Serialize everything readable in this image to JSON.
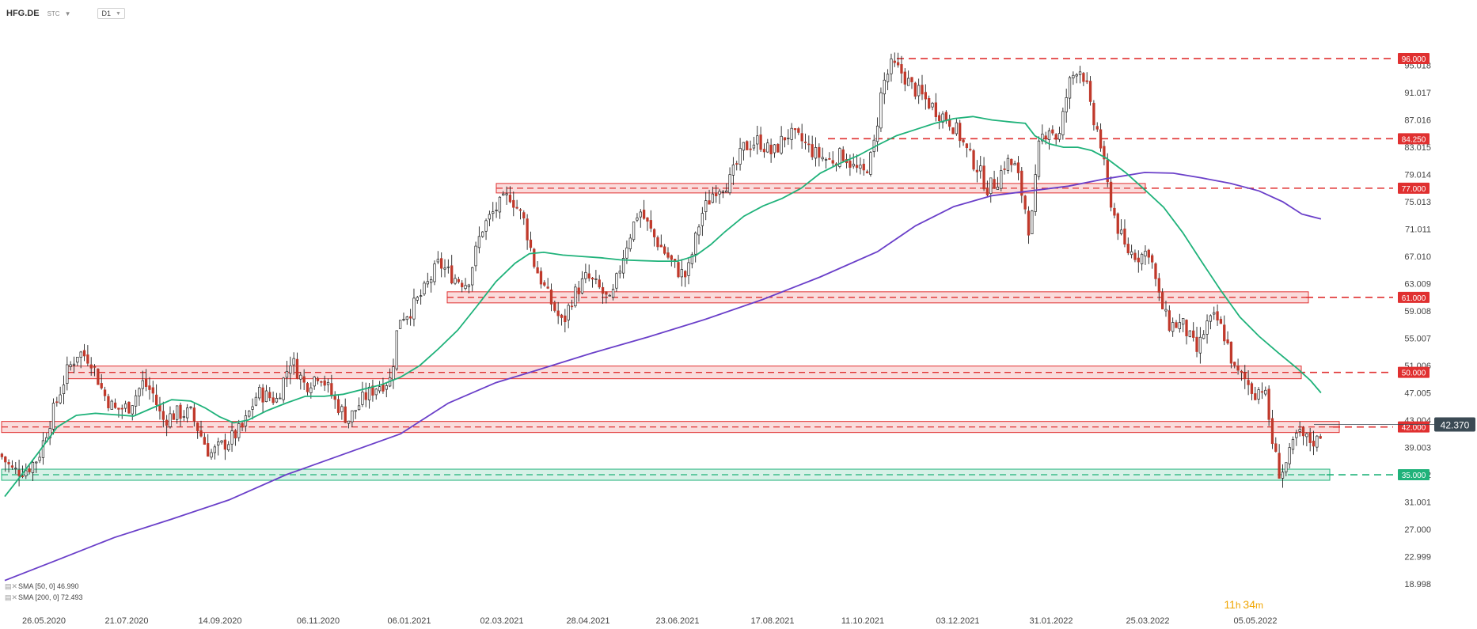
{
  "header": {
    "symbol": "HFG.DE",
    "source": "STC",
    "timeframe": "D1"
  },
  "indicators": [
    {
      "label": "SMA [50, 0] 46.990",
      "color": "#1fb27a"
    },
    {
      "label": "SMA [200, 0] 72.493",
      "color": "#6a3fc9"
    }
  ],
  "timer": {
    "hours": "11",
    "h_unit": "h",
    "minutes": "34",
    "m_unit": "m"
  },
  "chart_data": {
    "type": "candlestick",
    "ylim": [
      18.998,
      99.019
    ],
    "y_ticks": [
      "95.018",
      "91.017",
      "87.016",
      "83.015",
      "79.014",
      "75.013",
      "71.011",
      "67.010",
      "63.009",
      "59.008",
      "55.007",
      "51.006",
      "47.005",
      "43.004",
      "39.003",
      "35.002",
      "31.001",
      "27.000",
      "22.999",
      "18.998"
    ],
    "x_ticks": [
      "26.05.2020",
      "21.07.2020",
      "14.09.2020",
      "06.11.2020",
      "06.01.2021",
      "02.03.2021",
      "28.04.2021",
      "23.06.2021",
      "17.08.2021",
      "11.10.2021",
      "03.12.2021",
      "31.01.2022",
      "25.03.2022",
      "05.05.2022"
    ],
    "current_price": "42.370",
    "levels": [
      {
        "value": 96.0,
        "label": "96.000",
        "color": "#e03030",
        "zone": false
      },
      {
        "value": 84.25,
        "label": "84.250",
        "color": "#e03030",
        "zone": false
      },
      {
        "value": 77.0,
        "label": "77.000",
        "color": "#e03030",
        "zone": true
      },
      {
        "value": 61.0,
        "label": "61.000",
        "color": "#e03030",
        "zone": true
      },
      {
        "value": 50.0,
        "label": "50.000",
        "color": "#e03030",
        "zone": true
      },
      {
        "value": 42.0,
        "label": "42.000",
        "color": "#e03030",
        "zone": true
      },
      {
        "value": 35.0,
        "label": "35.000",
        "color": "#1fb27a",
        "zone": true
      }
    ],
    "close_path": [
      [
        0,
        38.0
      ],
      [
        14,
        35.5
      ],
      [
        28,
        35.8
      ],
      [
        40,
        37.5
      ],
      [
        55,
        44
      ],
      [
        70,
        50
      ],
      [
        82,
        53
      ],
      [
        95,
        52
      ],
      [
        108,
        47
      ],
      [
        120,
        44.5
      ],
      [
        135,
        45
      ],
      [
        150,
        48.5
      ],
      [
        160,
        47
      ],
      [
        170,
        43
      ],
      [
        185,
        44
      ],
      [
        200,
        44
      ],
      [
        210,
        41
      ],
      [
        220,
        38
      ],
      [
        240,
        40
      ],
      [
        255,
        42
      ],
      [
        270,
        47
      ],
      [
        290,
        46
      ],
      [
        305,
        52
      ],
      [
        320,
        48
      ],
      [
        335,
        50
      ],
      [
        350,
        46
      ],
      [
        365,
        43
      ],
      [
        380,
        46
      ],
      [
        395,
        48
      ],
      [
        410,
        49
      ],
      [
        418,
        58
      ],
      [
        430,
        59
      ],
      [
        445,
        62
      ],
      [
        460,
        66
      ],
      [
        475,
        64
      ],
      [
        490,
        63
      ],
      [
        505,
        71
      ],
      [
        520,
        74
      ],
      [
        535,
        76
      ],
      [
        550,
        72
      ],
      [
        560,
        66
      ],
      [
        575,
        61
      ],
      [
        590,
        57
      ],
      [
        600,
        61
      ],
      [
        615,
        64
      ],
      [
        630,
        62
      ],
      [
        640,
        60
      ],
      [
        655,
        68
      ],
      [
        670,
        74
      ],
      [
        685,
        70
      ],
      [
        700,
        67
      ],
      [
        710,
        65
      ],
      [
        720,
        64
      ],
      [
        735,
        73
      ],
      [
        750,
        77
      ],
      [
        765,
        78
      ],
      [
        780,
        83
      ],
      [
        795,
        84
      ],
      [
        810,
        82
      ],
      [
        825,
        85
      ],
      [
        840,
        84
      ],
      [
        855,
        82
      ],
      [
        870,
        81
      ],
      [
        885,
        82
      ],
      [
        895,
        80
      ],
      [
        905,
        79
      ],
      [
        915,
        82
      ],
      [
        925,
        92
      ],
      [
        935,
        95
      ],
      [
        945,
        94
      ],
      [
        955,
        92
      ],
      [
        970,
        90
      ],
      [
        985,
        88
      ],
      [
        995,
        87
      ],
      [
        1005,
        85
      ],
      [
        1015,
        82
      ],
      [
        1025,
        80
      ],
      [
        1035,
        77
      ],
      [
        1045,
        78
      ],
      [
        1055,
        81
      ],
      [
        1065,
        80
      ],
      [
        1075,
        74
      ],
      [
        1080,
        70
      ],
      [
        1090,
        84
      ],
      [
        1100,
        86
      ],
      [
        1110,
        84
      ],
      [
        1120,
        92
      ],
      [
        1130,
        95
      ],
      [
        1138,
        93
      ],
      [
        1145,
        87
      ],
      [
        1152,
        85
      ],
      [
        1160,
        78
      ],
      [
        1170,
        72
      ],
      [
        1180,
        68
      ],
      [
        1195,
        67
      ],
      [
        1205,
        68
      ],
      [
        1215,
        61
      ],
      [
        1225,
        57
      ],
      [
        1240,
        57
      ],
      [
        1255,
        53
      ],
      [
        1265,
        57
      ],
      [
        1275,
        58
      ],
      [
        1285,
        55
      ],
      [
        1295,
        50
      ],
      [
        1305,
        49
      ],
      [
        1315,
        47
      ],
      [
        1325,
        48
      ],
      [
        1335,
        39
      ],
      [
        1342,
        35
      ],
      [
        1350,
        37
      ],
      [
        1360,
        41
      ],
      [
        1372,
        40
      ],
      [
        1382,
        40
      ],
      [
        1387,
        42.37
      ]
    ],
    "sma50_path": [
      [
        5,
        31.8
      ],
      [
        20,
        34.5
      ],
      [
        40,
        38.2
      ],
      [
        60,
        42
      ],
      [
        80,
        43.7
      ],
      [
        100,
        44
      ],
      [
        120,
        43.8
      ],
      [
        140,
        43.6
      ],
      [
        160,
        44.8
      ],
      [
        180,
        46
      ],
      [
        200,
        45.8
      ],
      [
        215,
        44.8
      ],
      [
        230,
        43.5
      ],
      [
        245,
        42.6
      ],
      [
        260,
        43
      ],
      [
        280,
        44.4
      ],
      [
        300,
        45.5
      ],
      [
        320,
        46.5
      ],
      [
        340,
        46.5
      ],
      [
        360,
        46.8
      ],
      [
        380,
        47.5
      ],
      [
        400,
        48.2
      ],
      [
        420,
        49.3
      ],
      [
        440,
        51
      ],
      [
        460,
        53.5
      ],
      [
        480,
        56.2
      ],
      [
        500,
        59.7
      ],
      [
        520,
        63.3
      ],
      [
        540,
        66
      ],
      [
        555,
        67.4
      ],
      [
        570,
        67.6
      ],
      [
        590,
        67.2
      ],
      [
        610,
        67
      ],
      [
        630,
        66.8
      ],
      [
        650,
        66.5
      ],
      [
        670,
        66.4
      ],
      [
        690,
        66.3
      ],
      [
        710,
        66.3
      ],
      [
        720,
        66.7
      ],
      [
        730,
        67.2
      ],
      [
        745,
        68.7
      ],
      [
        760,
        70.6
      ],
      [
        780,
        72.9
      ],
      [
        800,
        74.4
      ],
      [
        820,
        75.5
      ],
      [
        840,
        77
      ],
      [
        860,
        79.2
      ],
      [
        880,
        80.6
      ],
      [
        900,
        81.8
      ],
      [
        920,
        83.3
      ],
      [
        940,
        84.7
      ],
      [
        960,
        85.6
      ],
      [
        980,
        86.5
      ],
      [
        1000,
        87.2
      ],
      [
        1020,
        87.5
      ],
      [
        1040,
        87
      ],
      [
        1060,
        86.7
      ],
      [
        1075,
        86.5
      ],
      [
        1085,
        84.7
      ],
      [
        1100,
        83.5
      ],
      [
        1115,
        83
      ],
      [
        1130,
        83
      ],
      [
        1145,
        82.5
      ],
      [
        1160,
        81.4
      ],
      [
        1180,
        79.3
      ],
      [
        1200,
        76.8
      ],
      [
        1220,
        74.2
      ],
      [
        1240,
        70.5
      ],
      [
        1260,
        66.2
      ],
      [
        1280,
        62
      ],
      [
        1300,
        58.1
      ],
      [
        1320,
        55.3
      ],
      [
        1340,
        52.9
      ],
      [
        1360,
        50.6
      ],
      [
        1374,
        48.8
      ],
      [
        1385,
        47
      ]
    ],
    "sma200_path": [
      [
        5,
        19.5
      ],
      [
        60,
        22.5
      ],
      [
        120,
        25.8
      ],
      [
        180,
        28.5
      ],
      [
        240,
        31.3
      ],
      [
        300,
        35
      ],
      [
        360,
        38
      ],
      [
        420,
        41
      ],
      [
        470,
        45.5
      ],
      [
        520,
        48.5
      ],
      [
        560,
        50.2
      ],
      [
        620,
        52.8
      ],
      [
        680,
        55.2
      ],
      [
        740,
        57.8
      ],
      [
        800,
        60.7
      ],
      [
        860,
        64
      ],
      [
        920,
        67.7
      ],
      [
        960,
        71.5
      ],
      [
        1000,
        74.3
      ],
      [
        1040,
        75.9
      ],
      [
        1080,
        76.6
      ],
      [
        1120,
        77.3
      ],
      [
        1160,
        78.4
      ],
      [
        1200,
        79.3
      ],
      [
        1230,
        79.2
      ],
      [
        1260,
        78.5
      ],
      [
        1290,
        77.7
      ],
      [
        1320,
        76.6
      ],
      [
        1345,
        75
      ],
      [
        1365,
        73.2
      ],
      [
        1385,
        72.5
      ]
    ]
  }
}
